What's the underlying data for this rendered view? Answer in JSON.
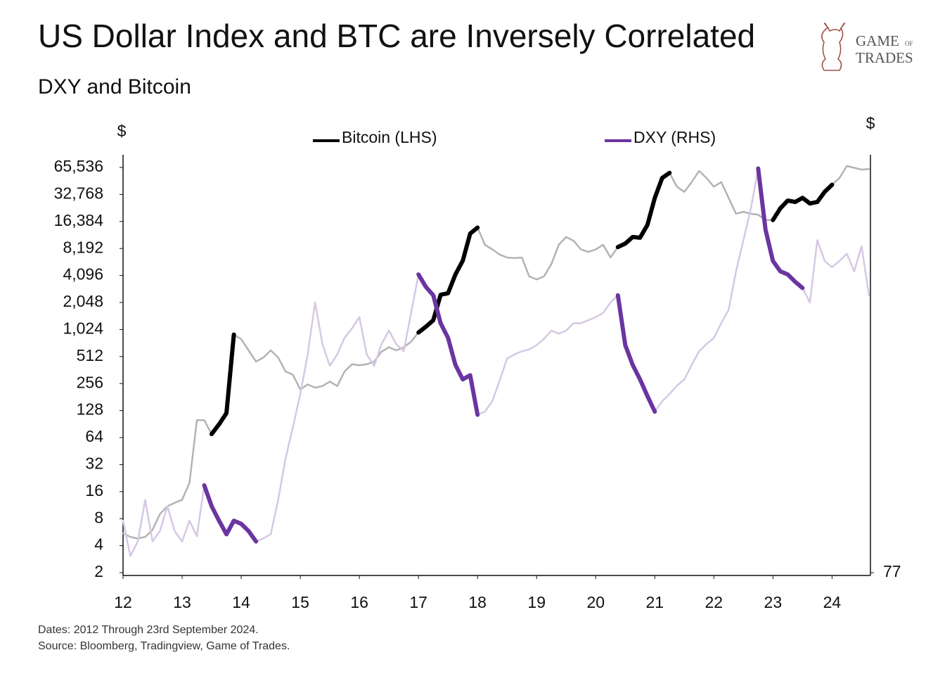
{
  "chart_data": {
    "type": "line",
    "title": "US Dollar Index and BTC are Inversely Correlated",
    "subtitle": "DXY  and Bitcoin",
    "ylabel": "$",
    "y2label": "$",
    "notes": [
      "Dates: 2012 Through 23rd September 2024.",
      "Source: Bloomberg, Tradingview, Game of Trades."
    ],
    "logo": {
      "top": "GAME",
      "of": "OF",
      "bottom": "TRADES"
    },
    "yscale": "log",
    "xlim": [
      12,
      24.65
    ],
    "xticks": [
      12,
      13,
      14,
      15,
      16,
      17,
      18,
      19,
      20,
      21,
      22,
      23,
      24
    ],
    "ylim": [
      2,
      65536
    ],
    "yticks": [
      2,
      4,
      8,
      16,
      32,
      64,
      128,
      256,
      512,
      {
        "value": 1024,
        "label": "1,024"
      },
      {
        "value": 2048,
        "label": "2,048"
      },
      {
        "value": 4096,
        "label": "4,096"
      },
      {
        "value": 8192,
        "label": "8,192"
      },
      {
        "value": 16384,
        "label": "16,384"
      },
      {
        "value": 32768,
        "label": "32,768"
      },
      {
        "value": 65536,
        "label": "65,536"
      }
    ],
    "y2lim": [
      77,
      116
    ],
    "y2ticks": [
      77
    ],
    "x": [
      12,
      12.125,
      12.25,
      12.375,
      12.5,
      12.625,
      12.75,
      12.875,
      13,
      13.125,
      13.25,
      13.375,
      13.5,
      13.625,
      13.75,
      13.875,
      14,
      14.125,
      14.25,
      14.375,
      14.5,
      14.625,
      14.75,
      14.875,
      15,
      15.125,
      15.25,
      15.375,
      15.5,
      15.625,
      15.75,
      15.875,
      16,
      16.125,
      16.25,
      16.375,
      16.5,
      16.625,
      16.75,
      16.875,
      17,
      17.125,
      17.25,
      17.375,
      17.5,
      17.625,
      17.75,
      17.875,
      18,
      18.125,
      18.25,
      18.375,
      18.5,
      18.625,
      18.75,
      18.875,
      19,
      19.125,
      19.25,
      19.375,
      19.5,
      19.625,
      19.75,
      19.875,
      20,
      20.125,
      20.25,
      20.375,
      20.5,
      20.625,
      20.75,
      20.875,
      21,
      21.125,
      21.25,
      21.375,
      21.5,
      21.625,
      21.75,
      21.875,
      22,
      22.125,
      22.25,
      22.375,
      22.5,
      22.625,
      22.75,
      22.875,
      23,
      23.125,
      23.25,
      23.375,
      23.5,
      23.625,
      23.75,
      23.875,
      24,
      24.125,
      24.25,
      24.375,
      24.5,
      24.625
    ],
    "series": [
      {
        "name": "Bitcoin (LHS)",
        "color": "#000000",
        "base_color": "#b3b3b3",
        "highlight": [
          [
            13.5,
            13.875
          ],
          [
            17,
            18
          ],
          [
            20.375,
            21.25
          ],
          [
            23,
            24
          ]
        ],
        "values": [
          5.5,
          5,
          4.8,
          5,
          6,
          9,
          11,
          12,
          13,
          20,
          100,
          100,
          70,
          90,
          120,
          900,
          800,
          600,
          450,
          500,
          600,
          500,
          350,
          320,
          220,
          250,
          230,
          240,
          270,
          240,
          350,
          420,
          410,
          420,
          450,
          580,
          650,
          600,
          650,
          750,
          950,
          1100,
          1300,
          2500,
          2600,
          4200,
          6000,
          12000,
          14000,
          9000,
          8000,
          7000,
          6500,
          6400,
          6500,
          4000,
          3700,
          4000,
          5500,
          9000,
          11000,
          10000,
          8000,
          7500,
          8000,
          9000,
          6500,
          8500,
          9300,
          11000,
          10800,
          15000,
          30000,
          50000,
          57000,
          40000,
          35000,
          45000,
          60000,
          50000,
          40000,
          45000,
          30000,
          20000,
          21000,
          20000,
          19500,
          17000,
          17000,
          23000,
          28000,
          27000,
          30000,
          26000,
          27000,
          35000,
          42000,
          50000,
          68000,
          65000,
          62000,
          63000
        ]
      },
      {
        "name": "DXY (RHS)",
        "color": "#6a35a0",
        "base_color": "#d6c8e4",
        "axis": "y2",
        "highlight": [
          [
            13.375,
            14.25
          ],
          [
            17,
            18
          ],
          [
            20.375,
            21
          ],
          [
            22.75,
            23.5
          ]
        ],
        "values": [
          82,
          78.6,
          80,
          84,
          80,
          81,
          83.4,
          81,
          80,
          82,
          80.5,
          85.4,
          83.4,
          82,
          80.7,
          82,
          81.7,
          81,
          80,
          80.3,
          80.7,
          84,
          88,
          91,
          94.2,
          98,
          103,
          99,
          96.9,
          98,
          99.6,
          100.5,
          101.6,
          98,
          96.9,
          99,
          100.3,
          99,
          98.3,
          102,
          105.7,
          104.5,
          103.7,
          101,
          99.6,
          97,
          95.6,
          96,
          92.2,
          92.5,
          93.5,
          95.5,
          97.6,
          98,
          98.3,
          98.5,
          98.9,
          99.5,
          100.3,
          100,
          100.3,
          101,
          101,
          101.3,
          101.6,
          102,
          103,
          103.7,
          98.9,
          97,
          95.6,
          94,
          92.5,
          93.5,
          94.2,
          95,
          95.6,
          97,
          98.3,
          99,
          99.6,
          101,
          102.3,
          106,
          109,
          112,
          115.9,
          110,
          107,
          106,
          105.7,
          105,
          104.4,
          103,
          109,
          107,
          106.4,
          107,
          107.7,
          106,
          108.4,
          103.7
        ]
      }
    ]
  }
}
